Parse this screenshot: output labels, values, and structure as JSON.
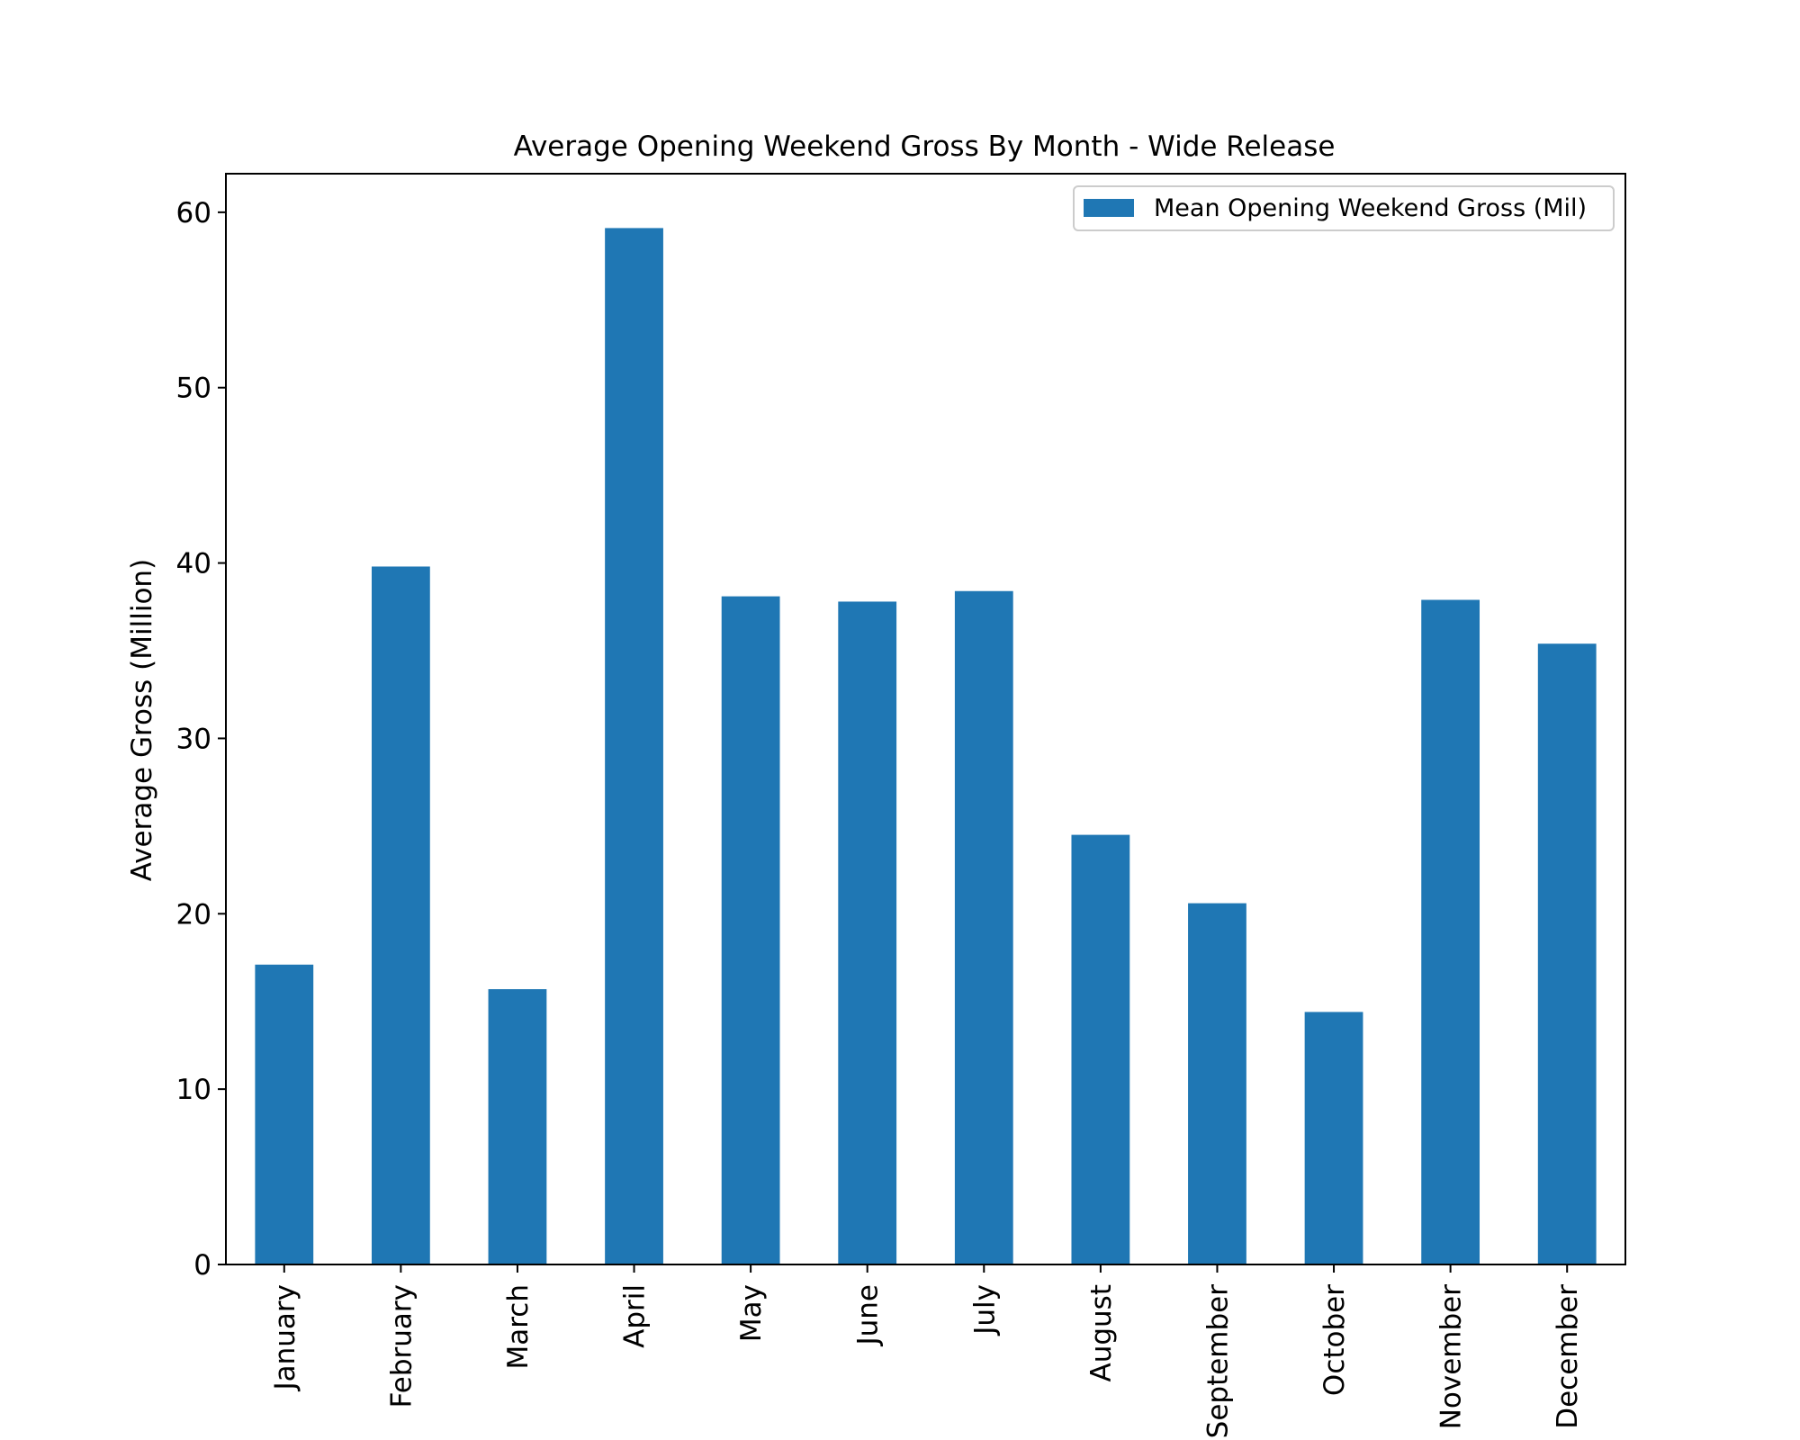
{
  "chart_data": {
    "type": "bar",
    "title": "Average Opening Weekend Gross By Month - Wide Release",
    "xlabel": "",
    "ylabel": "Average Gross (Million)",
    "categories": [
      "January",
      "February",
      "March",
      "April",
      "May",
      "June",
      "July",
      "August",
      "September",
      "October",
      "November",
      "December"
    ],
    "series": [
      {
        "name": "Mean Opening Weekend Gross (Mil)",
        "color": "#1f77b4",
        "values": [
          17.1,
          39.8,
          15.7,
          59.1,
          38.1,
          37.8,
          38.4,
          24.5,
          20.6,
          14.4,
          37.9,
          35.4
        ]
      }
    ],
    "yticks": [
      0,
      10,
      20,
      30,
      40,
      50,
      60
    ],
    "ylim": [
      0,
      62.2
    ],
    "grid": false,
    "legend_position": "top-right"
  }
}
